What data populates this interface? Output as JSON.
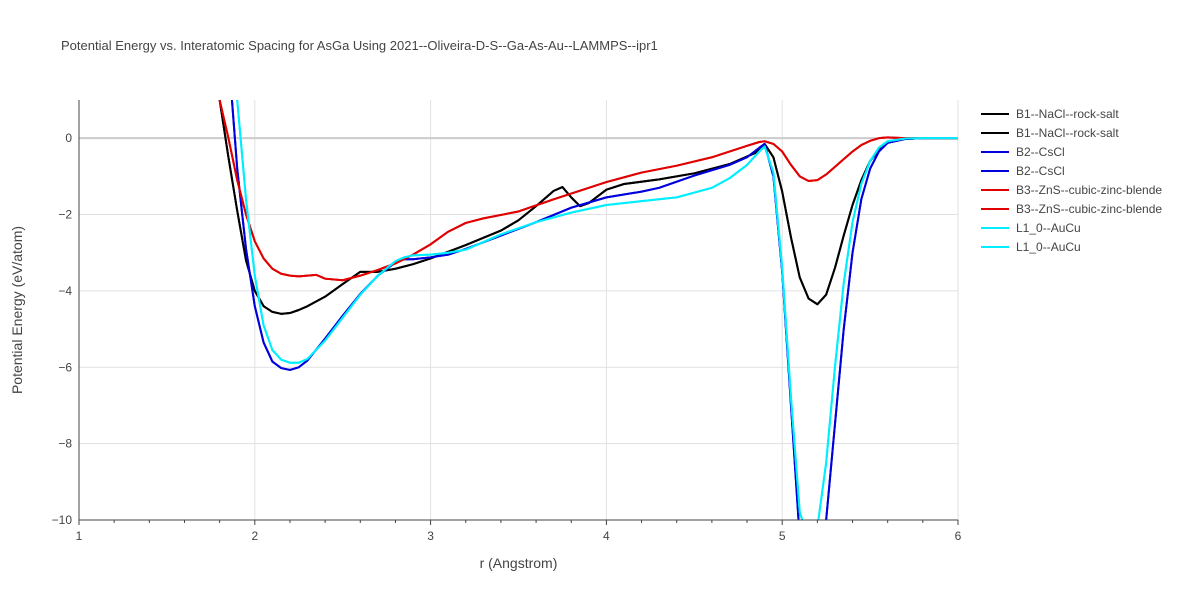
{
  "chart_data": {
    "type": "line",
    "title": "Potential Energy vs. Interatomic Spacing for AsGa Using 2021--Oliveira-D-S--Ga-As-Au--LAMMPS--ipr1",
    "xlabel": "r (Angstrom)",
    "ylabel": "Potential Energy (eV/atom)",
    "xlim": [
      1,
      6
    ],
    "ylim": [
      -10,
      1
    ],
    "xticks": [
      "1",
      "2",
      "3",
      "4",
      "5",
      "6"
    ],
    "yticks": [
      "0",
      "−2",
      "−4",
      "−6",
      "−8",
      "−10"
    ],
    "grid": true,
    "legend_position": "right",
    "series": [
      {
        "name": "B1--NaCl--rock-salt",
        "color": "#000000",
        "x": [
          1.8,
          1.85,
          1.9,
          1.95,
          2.0,
          2.05,
          2.1,
          2.15,
          2.2,
          2.25,
          2.3,
          2.4,
          2.5,
          2.6,
          2.7,
          2.8,
          2.9,
          3.0,
          3.2,
          3.4,
          3.5,
          3.6,
          3.7,
          3.75,
          3.8,
          3.85,
          3.9,
          4.0,
          4.1,
          4.3,
          4.5,
          4.7,
          4.85,
          4.9,
          4.95,
          5.0,
          5.05,
          5.1,
          5.15,
          5.2,
          5.25,
          5.3,
          5.35,
          5.4,
          5.45,
          5.5,
          5.55,
          5.6,
          5.7,
          5.8,
          6.0
        ],
        "y": [
          1.0,
          -0.5,
          -1.9,
          -3.2,
          -4.0,
          -4.4,
          -4.55,
          -4.6,
          -4.58,
          -4.5,
          -4.4,
          -4.15,
          -3.82,
          -3.5,
          -3.5,
          -3.42,
          -3.3,
          -3.15,
          -2.8,
          -2.42,
          -2.15,
          -1.78,
          -1.38,
          -1.28,
          -1.55,
          -1.78,
          -1.7,
          -1.35,
          -1.2,
          -1.08,
          -0.92,
          -0.68,
          -0.38,
          -0.15,
          -0.5,
          -1.4,
          -2.6,
          -3.65,
          -4.2,
          -4.35,
          -4.1,
          -3.4,
          -2.55,
          -1.75,
          -1.1,
          -0.6,
          -0.3,
          -0.12,
          -0.02,
          0.0,
          0.0
        ]
      },
      {
        "name": "B1--NaCl--rock-salt",
        "color": "#000000",
        "x": [
          1.8,
          1.85,
          1.9,
          1.95,
          2.0,
          2.05,
          2.1,
          2.15,
          2.2,
          2.25,
          2.3,
          2.4,
          2.5,
          2.6,
          2.7,
          2.8,
          2.9,
          3.0,
          3.2,
          3.4,
          3.5,
          3.6,
          3.7,
          3.75,
          3.8,
          3.85,
          3.9,
          4.0,
          4.1,
          4.3,
          4.5,
          4.7,
          4.85,
          4.9,
          4.95,
          5.0,
          5.05,
          5.1,
          5.15,
          5.2,
          5.25,
          5.3,
          5.35,
          5.4,
          5.45,
          5.5,
          5.55,
          5.6,
          5.7,
          5.8,
          6.0
        ],
        "y": [
          1.0,
          -0.5,
          -1.9,
          -3.2,
          -4.0,
          -4.4,
          -4.55,
          -4.6,
          -4.58,
          -4.5,
          -4.4,
          -4.15,
          -3.82,
          -3.5,
          -3.5,
          -3.42,
          -3.3,
          -3.15,
          -2.8,
          -2.42,
          -2.15,
          -1.78,
          -1.38,
          -1.28,
          -1.55,
          -1.78,
          -1.7,
          -1.35,
          -1.2,
          -1.08,
          -0.92,
          -0.68,
          -0.38,
          -0.15,
          -0.5,
          -1.4,
          -2.6,
          -3.65,
          -4.2,
          -4.35,
          -4.1,
          -3.4,
          -2.55,
          -1.75,
          -1.1,
          -0.6,
          -0.3,
          -0.12,
          -0.02,
          0.0,
          0.0
        ]
      },
      {
        "name": "B2--CsCl",
        "color": "#0000dd",
        "x": [
          1.87,
          1.9,
          1.95,
          2.0,
          2.05,
          2.1,
          2.15,
          2.2,
          2.25,
          2.3,
          2.4,
          2.5,
          2.6,
          2.7,
          2.8,
          2.85,
          2.9,
          3.0,
          3.1,
          3.2,
          3.4,
          3.6,
          3.8,
          4.0,
          4.2,
          4.3,
          4.5,
          4.7,
          4.8,
          4.87,
          4.9,
          4.95,
          5.0,
          5.05,
          5.1,
          5.15,
          5.2,
          5.25,
          5.3,
          5.35,
          5.4,
          5.45,
          5.5,
          5.55,
          5.6,
          5.7,
          5.8,
          6.0
        ],
        "y": [
          1.0,
          -0.8,
          -2.9,
          -4.4,
          -5.35,
          -5.85,
          -6.02,
          -6.07,
          -6.0,
          -5.82,
          -5.25,
          -4.65,
          -4.08,
          -3.6,
          -3.25,
          -3.17,
          -3.17,
          -3.12,
          -3.05,
          -2.9,
          -2.55,
          -2.2,
          -1.82,
          -1.55,
          -1.4,
          -1.3,
          -0.98,
          -0.7,
          -0.5,
          -0.25,
          -0.15,
          -1.0,
          -3.5,
          -7.0,
          -10.5,
          -12.0,
          -11.5,
          -10.0,
          -7.5,
          -5.0,
          -3.0,
          -1.6,
          -0.8,
          -0.35,
          -0.12,
          -0.02,
          0.0,
          0.0
        ]
      },
      {
        "name": "B2--CsCl",
        "color": "#0000dd",
        "x": [
          1.87,
          1.9,
          1.95,
          2.0,
          2.05,
          2.1,
          2.15,
          2.2,
          2.25,
          2.3,
          2.4,
          2.5,
          2.6,
          2.7,
          2.8,
          2.85,
          2.9,
          3.0,
          3.1,
          3.2,
          3.4,
          3.6,
          3.8,
          4.0,
          4.2,
          4.3,
          4.5,
          4.7,
          4.8,
          4.87,
          4.9,
          4.95,
          5.0,
          5.05,
          5.1,
          5.15,
          5.2,
          5.25,
          5.3,
          5.35,
          5.4,
          5.45,
          5.5,
          5.55,
          5.6,
          5.7,
          5.8,
          6.0
        ],
        "y": [
          1.0,
          -0.8,
          -2.9,
          -4.4,
          -5.35,
          -5.85,
          -6.02,
          -6.07,
          -6.0,
          -5.82,
          -5.25,
          -4.65,
          -4.08,
          -3.6,
          -3.25,
          -3.17,
          -3.17,
          -3.12,
          -3.05,
          -2.9,
          -2.55,
          -2.2,
          -1.82,
          -1.55,
          -1.4,
          -1.3,
          -0.98,
          -0.7,
          -0.5,
          -0.25,
          -0.15,
          -1.0,
          -3.5,
          -7.0,
          -10.5,
          -12.0,
          -11.5,
          -10.0,
          -7.5,
          -5.0,
          -3.0,
          -1.6,
          -0.8,
          -0.35,
          -0.12,
          -0.02,
          0.0,
          0.0
        ]
      },
      {
        "name": "B3--ZnS--cubic-zinc-blende",
        "color": "#e00000",
        "x": [
          1.8,
          1.85,
          1.9,
          1.95,
          2.0,
          2.05,
          2.1,
          2.15,
          2.2,
          2.25,
          2.3,
          2.35,
          2.4,
          2.5,
          2.6,
          2.7,
          2.8,
          2.9,
          3.0,
          3.1,
          3.2,
          3.3,
          3.5,
          3.7,
          3.9,
          4.0,
          4.2,
          4.4,
          4.6,
          4.8,
          4.87,
          4.9,
          4.95,
          5.0,
          5.05,
          5.1,
          5.15,
          5.2,
          5.25,
          5.3,
          5.35,
          5.4,
          5.45,
          5.5,
          5.55,
          5.6,
          5.7,
          6.0
        ],
        "y": [
          1.0,
          0.0,
          -1.1,
          -2.0,
          -2.7,
          -3.15,
          -3.42,
          -3.55,
          -3.6,
          -3.62,
          -3.6,
          -3.58,
          -3.68,
          -3.72,
          -3.6,
          -3.45,
          -3.28,
          -3.05,
          -2.78,
          -2.45,
          -2.22,
          -2.1,
          -1.92,
          -1.6,
          -1.3,
          -1.15,
          -0.9,
          -0.72,
          -0.5,
          -0.2,
          -0.1,
          -0.08,
          -0.15,
          -0.35,
          -0.7,
          -1.0,
          -1.12,
          -1.1,
          -0.95,
          -0.75,
          -0.55,
          -0.35,
          -0.18,
          -0.07,
          0.0,
          0.02,
          0.0,
          0.0
        ]
      },
      {
        "name": "B3--ZnS--cubic-zinc-blende",
        "color": "#e00000",
        "x": [
          1.8,
          1.85,
          1.9,
          1.95,
          2.0,
          2.05,
          2.1,
          2.15,
          2.2,
          2.25,
          2.3,
          2.35,
          2.4,
          2.5,
          2.6,
          2.7,
          2.8,
          2.9,
          3.0,
          3.1,
          3.2,
          3.3,
          3.5,
          3.7,
          3.9,
          4.0,
          4.2,
          4.4,
          4.6,
          4.8,
          4.87,
          4.9,
          4.95,
          5.0,
          5.05,
          5.1,
          5.15,
          5.2,
          5.25,
          5.3,
          5.35,
          5.4,
          5.45,
          5.5,
          5.55,
          5.6,
          5.7,
          6.0
        ],
        "y": [
          1.0,
          0.0,
          -1.1,
          -2.0,
          -2.7,
          -3.15,
          -3.42,
          -3.55,
          -3.6,
          -3.62,
          -3.6,
          -3.58,
          -3.68,
          -3.72,
          -3.6,
          -3.45,
          -3.28,
          -3.05,
          -2.78,
          -2.45,
          -2.22,
          -2.1,
          -1.92,
          -1.6,
          -1.3,
          -1.15,
          -0.9,
          -0.72,
          -0.5,
          -0.2,
          -0.1,
          -0.08,
          -0.15,
          -0.35,
          -0.7,
          -1.0,
          -1.12,
          -1.1,
          -0.95,
          -0.75,
          -0.55,
          -0.35,
          -0.18,
          -0.07,
          0.0,
          0.02,
          0.0,
          0.0
        ]
      },
      {
        "name": "L1_0--AuCu",
        "color": "#00eeff",
        "x": [
          1.9,
          1.95,
          2.0,
          2.05,
          2.1,
          2.15,
          2.2,
          2.25,
          2.3,
          2.4,
          2.5,
          2.6,
          2.7,
          2.8,
          2.85,
          2.9,
          3.0,
          3.1,
          3.2,
          3.4,
          3.6,
          3.8,
          4.0,
          4.2,
          4.4,
          4.6,
          4.7,
          4.8,
          4.85,
          4.88,
          4.9,
          4.95,
          5.0,
          5.05,
          5.1,
          5.15,
          5.2,
          5.25,
          5.3,
          5.35,
          5.4,
          5.45,
          5.5,
          5.55,
          5.6,
          5.7,
          5.8,
          6.0
        ],
        "y": [
          1.0,
          -1.6,
          -3.6,
          -4.9,
          -5.55,
          -5.8,
          -5.88,
          -5.88,
          -5.78,
          -5.3,
          -4.7,
          -4.1,
          -3.6,
          -3.22,
          -3.12,
          -3.07,
          -3.05,
          -3.0,
          -2.92,
          -2.52,
          -2.2,
          -1.95,
          -1.75,
          -1.65,
          -1.55,
          -1.3,
          -1.05,
          -0.7,
          -0.45,
          -0.3,
          -0.22,
          -0.9,
          -3.4,
          -6.8,
          -9.8,
          -10.5,
          -10.2,
          -8.5,
          -6.0,
          -3.8,
          -2.2,
          -1.2,
          -0.6,
          -0.25,
          -0.08,
          -0.01,
          0.0,
          0.0
        ]
      },
      {
        "name": "L1_0--AuCu",
        "color": "#00eeff",
        "x": [
          1.9,
          1.95,
          2.0,
          2.05,
          2.1,
          2.15,
          2.2,
          2.25,
          2.3,
          2.4,
          2.5,
          2.6,
          2.7,
          2.8,
          2.85,
          2.9,
          3.0,
          3.1,
          3.2,
          3.4,
          3.6,
          3.8,
          4.0,
          4.2,
          4.4,
          4.6,
          4.7,
          4.8,
          4.85,
          4.88,
          4.9,
          4.95,
          5.0,
          5.05,
          5.1,
          5.15,
          5.2,
          5.25,
          5.3,
          5.35,
          5.4,
          5.45,
          5.5,
          5.55,
          5.6,
          5.7,
          5.8,
          6.0
        ],
        "y": [
          1.0,
          -1.6,
          -3.6,
          -4.9,
          -5.55,
          -5.8,
          -5.88,
          -5.88,
          -5.78,
          -5.3,
          -4.7,
          -4.1,
          -3.6,
          -3.22,
          -3.12,
          -3.07,
          -3.05,
          -3.0,
          -2.92,
          -2.52,
          -2.2,
          -1.95,
          -1.75,
          -1.65,
          -1.55,
          -1.3,
          -1.05,
          -0.7,
          -0.45,
          -0.3,
          -0.22,
          -0.9,
          -3.4,
          -6.8,
          -9.8,
          -10.5,
          -10.2,
          -8.5,
          -6.0,
          -3.8,
          -2.2,
          -1.2,
          -0.6,
          -0.25,
          -0.08,
          -0.01,
          0.0,
          0.0
        ]
      }
    ]
  }
}
